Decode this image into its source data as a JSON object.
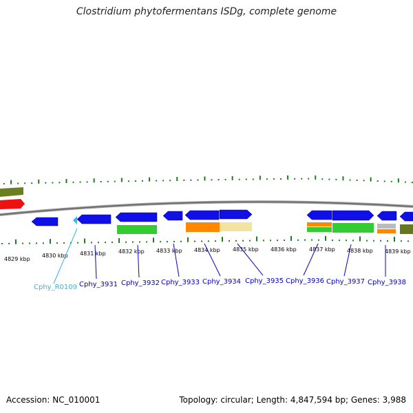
{
  "title": "Clostridium phytofermentans ISDg, complete genome",
  "footer": {
    "accession": "Accession: NC_010001",
    "topology": "Topology: circular; Length: 4,847,594 bp; Genes: 3,988"
  },
  "colors": {
    "background": "#ffffff",
    "backbone": "#8a8a8a",
    "ticks": "#1e7a1e",
    "cds": "#1010e0",
    "rna": "#30c0e0",
    "label_link": "#0000cc",
    "rna_label": "#30b8e0",
    "cog_green": "#33cc33",
    "cog_orange": "#ff8800",
    "cog_tan": "#f0e0a0",
    "cog_olive": "#667722",
    "cog_red": "#ee2222",
    "cog_gray": "#bbbbbb"
  },
  "kbp_labels": [
    "4829 kbp",
    "4830 kbp",
    "4831 kbp",
    "4832 kbp",
    "4833 kbp",
    "4834 kbp",
    "4835 kbp",
    "4836 kbp",
    "4837 kbp",
    "4838 kbp",
    "4839 kbp"
  ],
  "genes": [
    {
      "name": "Cphy_R0109",
      "type": "rna"
    },
    {
      "name": "Cphy_3931",
      "type": "cds"
    },
    {
      "name": "Cphy_3932",
      "type": "cds"
    },
    {
      "name": "Cphy_3933",
      "type": "cds"
    },
    {
      "name": "Cphy_3934",
      "type": "cds"
    },
    {
      "name": "Cphy_3935",
      "type": "cds"
    },
    {
      "name": "Cphy_3936",
      "type": "cds"
    },
    {
      "name": "Cphy_3937",
      "type": "cds"
    },
    {
      "name": "Cphy_3938",
      "type": "cds"
    }
  ]
}
